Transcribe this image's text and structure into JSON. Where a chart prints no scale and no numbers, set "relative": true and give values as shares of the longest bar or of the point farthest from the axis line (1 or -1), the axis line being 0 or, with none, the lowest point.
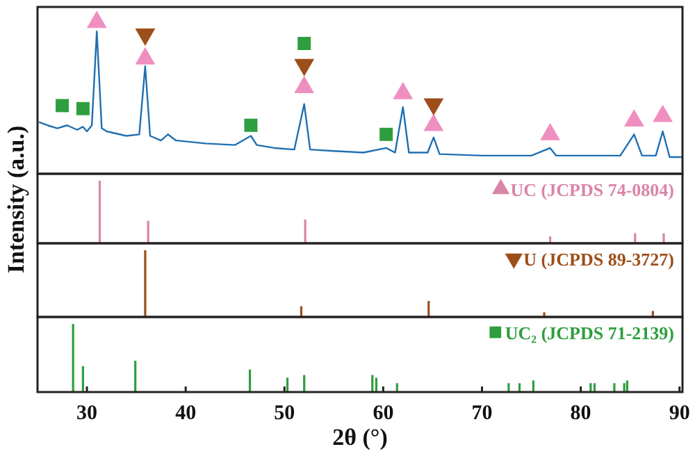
{
  "chart_data": [
    {
      "type": "line",
      "relative": true,
      "ylabel": "Intensity (a.u.)",
      "xlim": [
        25,
        90.3
      ],
      "series": [
        {
          "type": "line",
          "color": "#1f6fb2",
          "x": [
            25.2,
            26,
            27,
            28,
            29,
            29.6,
            30,
            30.5,
            31.0,
            31.5,
            32,
            34,
            35.3,
            35.9,
            36.4,
            37.5,
            38.2,
            39,
            42,
            45,
            46.6,
            47.2,
            49,
            51,
            52.0,
            52.6,
            55,
            58,
            60.3,
            61.2,
            62.0,
            62.6,
            64.5,
            65.1,
            65.7,
            70,
            75,
            76.9,
            77.5,
            84,
            85.4,
            86.2,
            87.6,
            88.3,
            89,
            90.3
          ],
          "values": [
            0.34,
            0.32,
            0.3,
            0.32,
            0.29,
            0.31,
            0.28,
            0.32,
            0.94,
            0.3,
            0.28,
            0.25,
            0.26,
            0.71,
            0.25,
            0.22,
            0.26,
            0.22,
            0.2,
            0.19,
            0.25,
            0.19,
            0.17,
            0.16,
            0.46,
            0.16,
            0.15,
            0.14,
            0.17,
            0.14,
            0.44,
            0.14,
            0.14,
            0.24,
            0.13,
            0.12,
            0.12,
            0.17,
            0.12,
            0.12,
            0.26,
            0.12,
            0.12,
            0.28,
            0.11,
            0.11
          ]
        },
        {
          "type": "scatter",
          "marker": "triangle",
          "color": "#ef8fc0",
          "x": [
            31.0,
            35.9,
            52.0,
            62.0,
            65.1,
            76.9,
            85.4,
            88.3
          ],
          "values": [
            1.0,
            0.76,
            0.57,
            0.53,
            0.32,
            0.26,
            0.35,
            0.38
          ]
        },
        {
          "type": "scatter",
          "marker": "triangle-down",
          "color": "#9c4f1a",
          "x": [
            35.9,
            52.0,
            65.1
          ],
          "values": [
            0.92,
            0.72,
            0.46
          ]
        },
        {
          "type": "scatter",
          "marker": "square",
          "color": "#2e9e3e",
          "x": [
            27.5,
            29.6,
            46.6,
            52.0,
            60.3
          ],
          "values": [
            0.45,
            0.43,
            0.32,
            0.86,
            0.26
          ]
        }
      ]
    },
    {
      "type": "bar",
      "relative": true,
      "xlim": [
        25,
        90.3
      ],
      "legend": "top right",
      "series": [
        {
          "name": "UC (JCPDS 74-0804)",
          "marker": "triangle",
          "color": "#d985a8",
          "x": [
            31.3,
            36.2,
            52.1,
            76.9,
            85.5,
            88.4
          ],
          "values": [
            1,
            0.36,
            0.38,
            0.11,
            0.16,
            0.16
          ]
        }
      ]
    },
    {
      "type": "bar",
      "relative": true,
      "xlim": [
        25,
        90.3
      ],
      "legend": "top right",
      "series": [
        {
          "name": "U (JCPDS 89-3727)",
          "marker": "triangle-down",
          "color": "#9c4f1a",
          "x": [
            35.9,
            51.7,
            64.6,
            76.3,
            87.3
          ],
          "values": [
            1,
            0.16,
            0.24,
            0.07,
            0.09
          ]
        }
      ]
    },
    {
      "type": "bar",
      "relative": true,
      "xlabel": "2θ (°)",
      "xlim": [
        25,
        90.3
      ],
      "xticks": [
        30,
        40,
        50,
        60,
        70,
        80,
        90
      ],
      "legend": "top right",
      "series": [
        {
          "name": "UC₂ (JCPDS 71-2139)",
          "marker": "square",
          "color": "#2e9e3e",
          "x": [
            28.6,
            29.6,
            34.9,
            46.5,
            50.3,
            52.0,
            58.9,
            59.3,
            61.4,
            72.7,
            73.8,
            75.2,
            81.0,
            81.4,
            83.4,
            84.4,
            84.7
          ],
          "values": [
            1,
            0.38,
            0.46,
            0.33,
            0.21,
            0.25,
            0.25,
            0.21,
            0.13,
            0.13,
            0.13,
            0.17,
            0.13,
            0.13,
            0.13,
            0.13,
            0.17
          ]
        }
      ]
    }
  ]
}
